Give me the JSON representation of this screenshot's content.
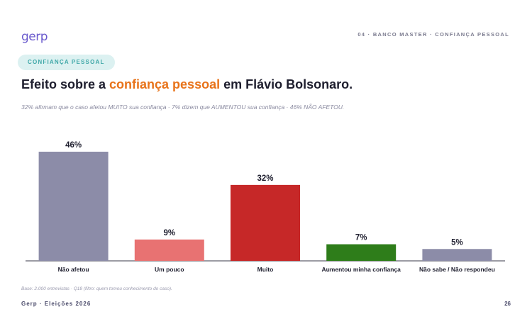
{
  "brand": {
    "logo_text": "gerp",
    "accent": "#6a5acd",
    "secondary": "#4fc3c8"
  },
  "header": {
    "section": "04 · BANCO MASTER · CONFIANÇA PESSOAL"
  },
  "tag": {
    "label": "CONFIANÇA PESSOAL"
  },
  "title": {
    "prefix": "Efeito sobre a ",
    "highlight": "confiança pessoal",
    "suffix": " em Flávio Bolsonaro."
  },
  "subtitle": "32% afirmam que o caso afetou MUITO sua confiança · 7% dizem que AUMENTOU sua confiança · 46% NÃO AFETOU.",
  "chart_data": {
    "type": "bar",
    "categories": [
      "Não afetou",
      "Um pouco",
      "Muito",
      "Aumentou minha confiança",
      "Não sabe / Não respondeu"
    ],
    "values": [
      46,
      9,
      32,
      7,
      5
    ],
    "data_labels": [
      "46%",
      "9%",
      "32%",
      "7%",
      "5%"
    ],
    "colors": [
      "#8c8ca8",
      "#e87272",
      "#c62828",
      "#2e7d1a",
      "#8c8ca8"
    ],
    "ylim": [
      0,
      46
    ],
    "grid": false,
    "legend": "none",
    "xlabel": "",
    "ylabel": ""
  },
  "note": "Base: 2.000 entrevistas · Q18 (filtro: quem tomou conhecimento do caso).",
  "footer": {
    "left": "Gerp · Eleições 2026",
    "page": "26"
  }
}
